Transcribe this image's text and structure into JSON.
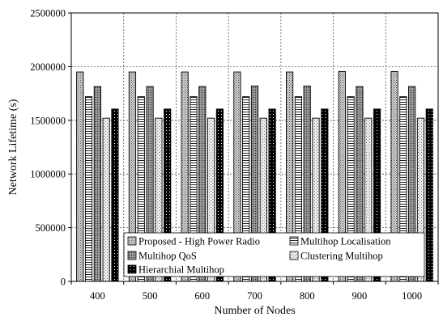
{
  "chart_data": {
    "type": "bar",
    "title": "",
    "xlabel": "Number of Nodes",
    "ylabel": "Network Lifetime (s)",
    "ylim": [
      0,
      2500000
    ],
    "yticks": [
      0,
      500000,
      1000000,
      1500000,
      2000000,
      2500000
    ],
    "ytick_labels": [
      "0",
      "500000",
      "1000000",
      "1500000",
      "2000000",
      "2500000"
    ],
    "grid": "dashed",
    "legend_position": "bottom-inside",
    "categories": [
      "400",
      "500",
      "600",
      "700",
      "800",
      "900",
      "1000"
    ],
    "series": [
      {
        "name": "Proposed - High Power Radio",
        "pattern": "dots",
        "values": [
          1950000,
          1950000,
          1950000,
          1950000,
          1950000,
          1955000,
          1955000
        ]
      },
      {
        "name": "Multihop Localisation",
        "pattern": "hstripes",
        "values": [
          1720000,
          1720000,
          1720000,
          1720000,
          1720000,
          1720000,
          1720000
        ]
      },
      {
        "name": "Multihop QoS",
        "pattern": "crosshatch",
        "values": [
          1815000,
          1815000,
          1815000,
          1820000,
          1820000,
          1815000,
          1815000
        ]
      },
      {
        "name": "Clustering Multihop",
        "pattern": "sparse-dots",
        "values": [
          1520000,
          1520000,
          1520000,
          1520000,
          1520000,
          1520000,
          1520000
        ]
      },
      {
        "name": "Hierarchial Multihop",
        "pattern": "black-dots",
        "values": [
          1605000,
          1605000,
          1605000,
          1605000,
          1605000,
          1605000,
          1605000
        ]
      }
    ]
  }
}
